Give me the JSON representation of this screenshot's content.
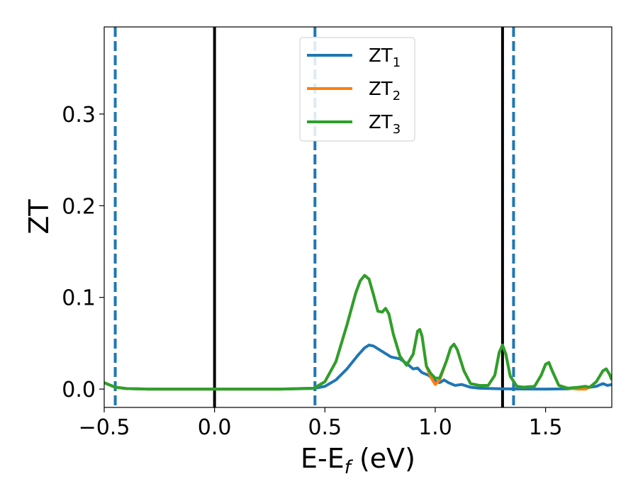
{
  "chart_data": {
    "type": "line",
    "title": "",
    "xlabel_main": "E-E",
    "xlabel_sub": "f",
    "xlabel_tail": " (eV)",
    "ylabel": "ZT",
    "xlim": [
      -0.5,
      1.8
    ],
    "ylim": [
      -0.02,
      0.395
    ],
    "grid": false,
    "legend_placement": "upper-center",
    "xticks": [
      {
        "value": -0.5,
        "label": "−0.5"
      },
      {
        "value": 0.0,
        "label": "0.0"
      },
      {
        "value": 0.5,
        "label": "0.5"
      },
      {
        "value": 1.0,
        "label": "1.0"
      },
      {
        "value": 1.5,
        "label": "1.5"
      }
    ],
    "yticks": [
      {
        "value": 0.0,
        "label": "0.0"
      },
      {
        "value": 0.1,
        "label": "0.1"
      },
      {
        "value": 0.2,
        "label": "0.2"
      },
      {
        "value": 0.3,
        "label": "0.3"
      }
    ],
    "vlines": [
      {
        "x": -0.45,
        "style": "dashed",
        "color": "#1f77b4"
      },
      {
        "x": 0.0,
        "style": "solid",
        "color": "#000000"
      },
      {
        "x": 0.455,
        "style": "dashed",
        "color": "#1f77b4"
      },
      {
        "x": 1.305,
        "style": "solid",
        "color": "#000000"
      },
      {
        "x": 1.355,
        "style": "dashed",
        "color": "#1f77b4"
      }
    ],
    "series": [
      {
        "name_main": "ZT",
        "name_sub": "1",
        "color": "#1f77b4",
        "points": [
          [
            -0.5,
            0.007
          ],
          [
            -0.45,
            0.002
          ],
          [
            -0.4,
            0.0006
          ],
          [
            -0.3,
            0.0
          ],
          [
            0.0,
            0.0
          ],
          [
            0.3,
            0.0
          ],
          [
            0.45,
            0.0007
          ],
          [
            0.5,
            0.003
          ],
          [
            0.55,
            0.01
          ],
          [
            0.6,
            0.022
          ],
          [
            0.65,
            0.037
          ],
          [
            0.68,
            0.045
          ],
          [
            0.7,
            0.048
          ],
          [
            0.72,
            0.047
          ],
          [
            0.76,
            0.041
          ],
          [
            0.8,
            0.035
          ],
          [
            0.84,
            0.033
          ],
          [
            0.87,
            0.028
          ],
          [
            0.9,
            0.022
          ],
          [
            0.92,
            0.023
          ],
          [
            0.94,
            0.018
          ],
          [
            0.97,
            0.015
          ],
          [
            1.0,
            0.009
          ],
          [
            1.02,
            0.007
          ],
          [
            1.04,
            0.01
          ],
          [
            1.06,
            0.007
          ],
          [
            1.09,
            0.004
          ],
          [
            1.12,
            0.005
          ],
          [
            1.16,
            0.002
          ],
          [
            1.2,
            0.001
          ],
          [
            1.3,
            0.0003
          ],
          [
            1.35,
            0.0002
          ],
          [
            1.5,
            0.0
          ],
          [
            1.6,
            0.0003
          ],
          [
            1.7,
            0.002
          ],
          [
            1.73,
            0.003
          ],
          [
            1.76,
            0.006
          ],
          [
            1.78,
            0.004
          ],
          [
            1.8,
            0.005
          ]
        ]
      },
      {
        "name_main": "ZT",
        "name_sub": "2",
        "color": "#ff7f0e",
        "points": [
          [
            -0.5,
            0.007
          ],
          [
            -0.45,
            0.002
          ],
          [
            -0.4,
            0.0006
          ],
          [
            -0.3,
            0.0
          ],
          [
            0.0,
            0.0
          ],
          [
            0.3,
            0.0
          ],
          [
            0.45,
            0.001
          ],
          [
            0.5,
            0.008
          ],
          [
            0.55,
            0.03
          ],
          [
            0.6,
            0.07
          ],
          [
            0.64,
            0.105
          ],
          [
            0.66,
            0.118
          ],
          [
            0.68,
            0.124
          ],
          [
            0.7,
            0.12
          ],
          [
            0.72,
            0.103
          ],
          [
            0.74,
            0.085
          ],
          [
            0.76,
            0.084
          ],
          [
            0.775,
            0.088
          ],
          [
            0.79,
            0.082
          ],
          [
            0.81,
            0.06
          ],
          [
            0.84,
            0.036
          ],
          [
            0.87,
            0.026
          ],
          [
            0.9,
            0.038
          ],
          [
            0.92,
            0.063
          ],
          [
            0.93,
            0.065
          ],
          [
            0.94,
            0.058
          ],
          [
            0.96,
            0.025
          ],
          [
            0.98,
            0.013
          ],
          [
            1.0,
            0.005
          ],
          [
            1.02,
            0.01
          ],
          [
            1.05,
            0.03
          ],
          [
            1.07,
            0.045
          ],
          [
            1.085,
            0.049
          ],
          [
            1.1,
            0.043
          ],
          [
            1.13,
            0.02
          ],
          [
            1.16,
            0.006
          ],
          [
            1.2,
            0.004
          ],
          [
            1.24,
            0.004
          ],
          [
            1.27,
            0.015
          ],
          [
            1.29,
            0.04
          ],
          [
            1.305,
            0.048
          ],
          [
            1.32,
            0.038
          ],
          [
            1.34,
            0.014
          ],
          [
            1.37,
            0.003
          ],
          [
            1.4,
            0.002
          ],
          [
            1.45,
            0.003
          ],
          [
            1.48,
            0.015
          ],
          [
            1.5,
            0.027
          ],
          [
            1.515,
            0.029
          ],
          [
            1.53,
            0.02
          ],
          [
            1.56,
            0.004
          ],
          [
            1.6,
            0.001
          ],
          [
            1.65,
            0.0
          ],
          [
            1.68,
            0.0
          ],
          [
            1.7,
            0.002
          ],
          [
            1.73,
            0.008
          ],
          [
            1.76,
            0.02
          ],
          [
            1.775,
            0.022
          ],
          [
            1.79,
            0.016
          ],
          [
            1.8,
            0.01
          ]
        ]
      },
      {
        "name_main": "ZT",
        "name_sub": "3",
        "color": "#2ca02c",
        "points": [
          [
            -0.5,
            0.007
          ],
          [
            -0.45,
            0.002
          ],
          [
            -0.4,
            0.0006
          ],
          [
            -0.3,
            0.0
          ],
          [
            0.0,
            0.0
          ],
          [
            0.3,
            0.0
          ],
          [
            0.45,
            0.001
          ],
          [
            0.5,
            0.008
          ],
          [
            0.55,
            0.03
          ],
          [
            0.6,
            0.07
          ],
          [
            0.64,
            0.105
          ],
          [
            0.66,
            0.118
          ],
          [
            0.68,
            0.124
          ],
          [
            0.7,
            0.12
          ],
          [
            0.72,
            0.103
          ],
          [
            0.74,
            0.085
          ],
          [
            0.76,
            0.084
          ],
          [
            0.775,
            0.088
          ],
          [
            0.79,
            0.082
          ],
          [
            0.81,
            0.06
          ],
          [
            0.84,
            0.036
          ],
          [
            0.87,
            0.026
          ],
          [
            0.9,
            0.038
          ],
          [
            0.92,
            0.063
          ],
          [
            0.93,
            0.065
          ],
          [
            0.94,
            0.058
          ],
          [
            0.96,
            0.025
          ],
          [
            0.98,
            0.017
          ],
          [
            1.0,
            0.012
          ],
          [
            1.02,
            0.012
          ],
          [
            1.05,
            0.03
          ],
          [
            1.07,
            0.045
          ],
          [
            1.085,
            0.049
          ],
          [
            1.1,
            0.043
          ],
          [
            1.13,
            0.02
          ],
          [
            1.16,
            0.006
          ],
          [
            1.2,
            0.004
          ],
          [
            1.24,
            0.004
          ],
          [
            1.27,
            0.015
          ],
          [
            1.29,
            0.04
          ],
          [
            1.305,
            0.048
          ],
          [
            1.32,
            0.038
          ],
          [
            1.34,
            0.014
          ],
          [
            1.37,
            0.003
          ],
          [
            1.4,
            0.002
          ],
          [
            1.45,
            0.003
          ],
          [
            1.48,
            0.015
          ],
          [
            1.5,
            0.027
          ],
          [
            1.515,
            0.029
          ],
          [
            1.53,
            0.02
          ],
          [
            1.56,
            0.004
          ],
          [
            1.6,
            0.001
          ],
          [
            1.65,
            0.002
          ],
          [
            1.68,
            0.003
          ],
          [
            1.7,
            0.002
          ],
          [
            1.73,
            0.008
          ],
          [
            1.76,
            0.02
          ],
          [
            1.775,
            0.022
          ],
          [
            1.79,
            0.016
          ],
          [
            1.8,
            0.01
          ]
        ]
      }
    ]
  }
}
